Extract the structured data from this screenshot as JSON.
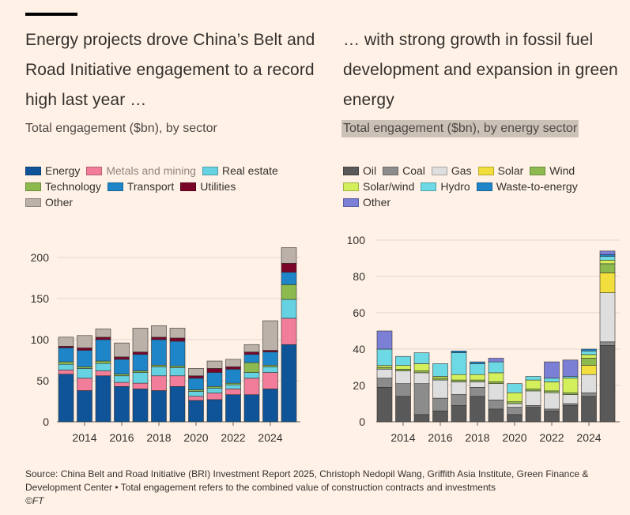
{
  "left": {
    "title": "Energy projects drove China’s Belt and Road Initiative engagement to a record high last year …",
    "subtitle": "Total engagement ($bn), by sector"
  },
  "right": {
    "title": "… with strong growth in fossil fuel development and expansion in green energy",
    "subtitle": "Total engagement ($bn), by energy sector"
  },
  "footer": {
    "source": "Source: China Belt and Road Initiative (BRI) Investment Report 2025, Christoph Nedopil Wang, Griffith Asia Institute, Green Finance & Development Center • Total engagement refers to the combined value of construction contracts and investments",
    "credit": "©FT"
  },
  "chart_data": [
    {
      "type": "bar",
      "stacked": true,
      "categories": [
        "2013",
        "2014",
        "2015",
        "2016",
        "2017",
        "2018",
        "2019",
        "2020",
        "2021",
        "2022",
        "2023",
        "2024",
        "2025"
      ],
      "xticks": [
        "2014",
        "2016",
        "2018",
        "2020",
        "2022",
        "2024"
      ],
      "ylim": [
        0,
        200
      ],
      "yticks": [
        0,
        50,
        100,
        150,
        200
      ],
      "grid": true,
      "legend_position": "top",
      "series": [
        {
          "name": "Energy",
          "color": "#0f5499",
          "values": [
            58,
            38,
            56,
            43,
            40,
            38,
            43,
            26,
            27,
            33,
            33,
            40,
            94
          ]
        },
        {
          "name": "Metals and mining",
          "color": "#f27d9a",
          "values": [
            5,
            15,
            6,
            5,
            7,
            18,
            13,
            5,
            8,
            7,
            20,
            20,
            32
          ]
        },
        {
          "name": "Real estate",
          "color": "#66d1e1",
          "values": [
            7,
            12,
            9,
            8,
            13,
            11,
            10,
            6,
            6,
            5,
            7,
            7,
            23
          ]
        },
        {
          "name": "Technology",
          "color": "#8dba4e",
          "values": [
            3,
            2,
            3,
            2,
            2,
            2,
            2,
            2,
            2,
            2,
            12,
            2,
            18
          ]
        },
        {
          "name": "Transport",
          "color": "#1e85c9",
          "values": [
            17,
            20,
            26,
            18,
            20,
            31,
            30,
            14,
            17,
            17,
            10,
            16,
            15
          ]
        },
        {
          "name": "Utilities",
          "color": "#79052a",
          "values": [
            2,
            3,
            3,
            3,
            3,
            3,
            4,
            3,
            5,
            3,
            3,
            2,
            11
          ]
        },
        {
          "name": "Other",
          "color": "#bcb1a8",
          "values": [
            11,
            15,
            10,
            17,
            29,
            14,
            12,
            9,
            9,
            9,
            9,
            36,
            19
          ]
        }
      ]
    },
    {
      "type": "bar",
      "stacked": true,
      "categories": [
        "2013",
        "2014",
        "2015",
        "2016",
        "2017",
        "2018",
        "2019",
        "2020",
        "2021",
        "2022",
        "2023",
        "2024",
        "2025"
      ],
      "xticks": [
        "2014",
        "2016",
        "2018",
        "2020",
        "2022",
        "2024"
      ],
      "ylim": [
        0,
        100
      ],
      "yticks": [
        0,
        20,
        40,
        60,
        80,
        100
      ],
      "grid": true,
      "legend_position": "top",
      "series": [
        {
          "name": "Oil",
          "color": "#595959",
          "values": [
            19,
            14,
            4,
            6,
            9,
            14,
            7,
            4,
            8,
            6,
            9,
            14,
            42
          ]
        },
        {
          "name": "Coal",
          "color": "#8c8c8c",
          "values": [
            5,
            7,
            17,
            7,
            6,
            5,
            5,
            4,
            1,
            1,
            1,
            2,
            2
          ]
        },
        {
          "name": "Gas",
          "color": "#dedede",
          "values": [
            5,
            7,
            6,
            10,
            7,
            3,
            9,
            2,
            8,
            9,
            5,
            10,
            27
          ]
        },
        {
          "name": "Solar",
          "color": "#f2df3d",
          "values": [
            0,
            0,
            0,
            0,
            0,
            0,
            0,
            0,
            0,
            0,
            0,
            5,
            11
          ]
        },
        {
          "name": "Wind",
          "color": "#8dba4e",
          "values": [
            1,
            1,
            1,
            1,
            1,
            1,
            1,
            1,
            1,
            1,
            1,
            4,
            5
          ]
        },
        {
          "name": "Solar/wind",
          "color": "#d3ef5b",
          "values": [
            1,
            2,
            4,
            1,
            3,
            3,
            5,
            5,
            5,
            5,
            8,
            2,
            2
          ]
        },
        {
          "name": "Hydro",
          "color": "#6dd9e4",
          "values": [
            9,
            5,
            6,
            7,
            12,
            6,
            6,
            5,
            2,
            2,
            1,
            2,
            2
          ]
        },
        {
          "name": "Waste-to-energy",
          "color": "#1e85c9",
          "values": [
            0,
            0,
            0,
            0,
            1,
            1,
            0,
            0,
            0,
            0,
            0,
            1,
            1
          ]
        },
        {
          "name": "Other",
          "color": "#7c7fd6",
          "values": [
            10,
            0,
            0,
            0,
            0,
            0,
            2,
            0,
            0,
            9,
            9,
            0,
            2
          ]
        }
      ]
    }
  ]
}
